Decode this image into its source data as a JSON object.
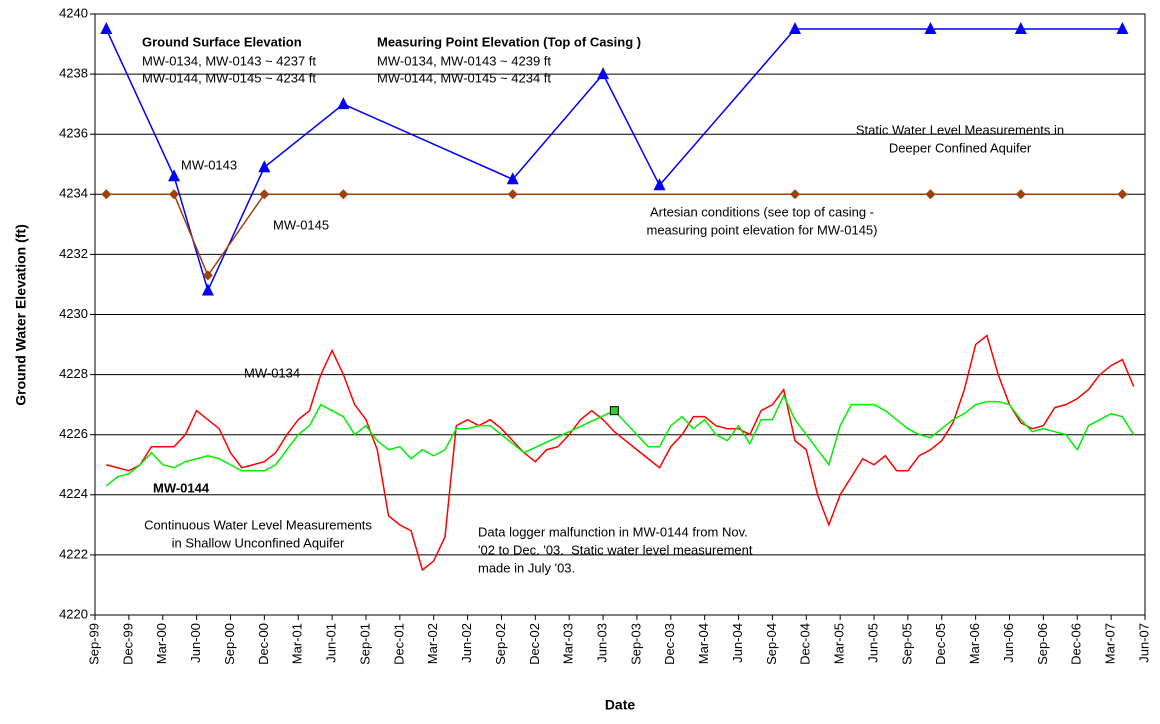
{
  "chart_data": {
    "type": "line",
    "y_label": "Ground Water Elevation (ft)",
    "x_label": "Date",
    "ylim": [
      4220,
      4240
    ],
    "yticks": [
      4220,
      4222,
      4224,
      4226,
      4228,
      4230,
      4232,
      4234,
      4236,
      4238,
      4240
    ],
    "xlim": [
      "1999-09",
      "2007-06"
    ],
    "xticks": [
      {
        "value": "1999-09",
        "label": "Sep-99"
      },
      {
        "value": "1999-12",
        "label": "Dec-99"
      },
      {
        "value": "2000-03",
        "label": "Mar-00"
      },
      {
        "value": "2000-06",
        "label": "Jun-00"
      },
      {
        "value": "2000-09",
        "label": "Sep-00"
      },
      {
        "value": "2000-12",
        "label": "Dec-00"
      },
      {
        "value": "2001-03",
        "label": "Mar-01"
      },
      {
        "value": "2001-06",
        "label": "Jun-01"
      },
      {
        "value": "2001-09",
        "label": "Sep-01"
      },
      {
        "value": "2001-12",
        "label": "Dec-01"
      },
      {
        "value": "2002-03",
        "label": "Mar-02"
      },
      {
        "value": "2002-06",
        "label": "Jun-02"
      },
      {
        "value": "2002-09",
        "label": "Sep-02"
      },
      {
        "value": "2002-12",
        "label": "Dec-02"
      },
      {
        "value": "2003-03",
        "label": "Mar-03"
      },
      {
        "value": "2003-06",
        "label": "Jun-03"
      },
      {
        "value": "2003-09",
        "label": "Sep-03"
      },
      {
        "value": "2003-12",
        "label": "Dec-03"
      },
      {
        "value": "2004-03",
        "label": "Mar-04"
      },
      {
        "value": "2004-06",
        "label": "Jun-04"
      },
      {
        "value": "2004-09",
        "label": "Sep-04"
      },
      {
        "value": "2004-12",
        "label": "Dec-04"
      },
      {
        "value": "2005-03",
        "label": "Mar-05"
      },
      {
        "value": "2005-06",
        "label": "Jun-05"
      },
      {
        "value": "2005-09",
        "label": "Sep-05"
      },
      {
        "value": "2005-12",
        "label": "Dec-05"
      },
      {
        "value": "2006-03",
        "label": "Mar-06"
      },
      {
        "value": "2006-06",
        "label": "Jun-06"
      },
      {
        "value": "2006-09",
        "label": "Sep-06"
      },
      {
        "value": "2006-12",
        "label": "Dec-06"
      },
      {
        "value": "2007-03",
        "label": "Mar-07"
      },
      {
        "value": "2007-06",
        "label": "Jun-07"
      }
    ],
    "grid": true,
    "series": [
      {
        "name": "MW-0143",
        "color": "#0000ff",
        "marker": "triangle",
        "x": [
          "1999-10",
          "2000-04",
          "2000-07",
          "2000-12",
          "2001-07",
          "2002-10",
          "2003-06",
          "2003-11",
          "2004-11",
          "2005-11",
          "2006-07",
          "2007-04"
        ],
        "values": [
          4239.5,
          4234.6,
          4230.8,
          4234.9,
          4237.0,
          4234.5,
          4238.0,
          4234.3,
          4239.5,
          4239.5,
          4239.5,
          4239.5
        ]
      },
      {
        "name": "MW-0145",
        "color": "#a0400c",
        "marker": "diamond",
        "x": [
          "1999-10",
          "2000-04",
          "2000-07",
          "2000-12",
          "2001-07",
          "2002-10",
          "2004-11",
          "2005-11",
          "2006-07",
          "2007-04"
        ],
        "values": [
          4234,
          4234,
          4231.3,
          4234,
          4234,
          4234,
          4234,
          4234,
          4234,
          4234
        ]
      },
      {
        "name": "MW-0134",
        "color": "#ff0000",
        "marker": "none",
        "x": [
          "1999-10",
          "1999-11",
          "1999-12",
          "2000-01",
          "2000-02",
          "2000-03",
          "2000-04",
          "2000-05",
          "2000-06",
          "2000-07",
          "2000-08",
          "2000-09",
          "2000-10",
          "2000-11",
          "2000-12",
          "2001-01",
          "2001-02",
          "2001-03",
          "2001-04",
          "2001-05",
          "2001-06",
          "2001-07",
          "2001-08",
          "2001-09",
          "2001-10",
          "2001-11",
          "2001-12",
          "2002-01",
          "2002-02",
          "2002-03",
          "2002-04",
          "2002-05",
          "2002-06",
          "2002-07",
          "2002-08",
          "2002-09",
          "2002-10",
          "2002-11",
          "2002-12",
          "2003-01",
          "2003-02",
          "2003-03",
          "2003-04",
          "2003-05",
          "2003-06",
          "2003-07",
          "2003-08",
          "2003-09",
          "2003-10",
          "2003-11",
          "2003-12",
          "2004-01",
          "2004-02",
          "2004-03",
          "2004-04",
          "2004-05",
          "2004-06",
          "2004-07",
          "2004-08",
          "2004-09",
          "2004-10",
          "2004-11",
          "2004-12",
          "2005-01",
          "2005-02",
          "2005-03",
          "2005-04",
          "2005-05",
          "2005-06",
          "2005-07",
          "2005-08",
          "2005-09",
          "2005-10",
          "2005-11",
          "2005-12",
          "2006-01",
          "2006-02",
          "2006-03",
          "2006-04",
          "2006-05",
          "2006-06",
          "2006-07",
          "2006-08",
          "2006-09",
          "2006-10",
          "2006-11",
          "2006-12",
          "2007-01",
          "2007-02",
          "2007-03",
          "2007-04",
          "2007-05"
        ],
        "values": [
          4225.0,
          4224.9,
          4224.8,
          4225.0,
          4225.6,
          4225.6,
          4225.6,
          4226.0,
          4226.8,
          4226.5,
          4226.2,
          4225.4,
          4224.9,
          4225.0,
          4225.1,
          4225.4,
          4226.0,
          4226.5,
          4226.8,
          4228.0,
          4228.8,
          4228.0,
          4227.0,
          4226.5,
          4225.5,
          4223.3,
          4223.0,
          4222.8,
          4221.5,
          4221.8,
          4222.6,
          4226.3,
          4226.5,
          4226.3,
          4226.5,
          4226.2,
          4225.8,
          4225.4,
          4225.1,
          4225.5,
          4225.6,
          4226.0,
          4226.5,
          4226.8,
          4226.5,
          4226.1,
          4225.8,
          4225.5,
          4225.2,
          4224.9,
          4225.6,
          4226.0,
          4226.6,
          4226.6,
          4226.3,
          4226.2,
          4226.2,
          4226.0,
          4226.8,
          4227.0,
          4227.5,
          4225.8,
          4225.5,
          4224.0,
          4223.0,
          4224.0,
          4224.6,
          4225.2,
          4225.0,
          4225.3,
          4224.8,
          4224.8,
          4225.3,
          4225.5,
          4225.8,
          4226.4,
          4227.5,
          4229.0,
          4229.3,
          4228.0,
          4227.0,
          4226.4,
          4226.2,
          4226.3,
          4226.9,
          4227.0,
          4227.2,
          4227.5,
          4228.0,
          4228.3,
          4228.5,
          4227.6
        ]
      },
      {
        "name": "MW-0144",
        "color": "#00ee00",
        "marker": "none",
        "x": [
          "1999-10",
          "1999-11",
          "1999-12",
          "2000-01",
          "2000-02",
          "2000-03",
          "2000-04",
          "2000-05",
          "2000-06",
          "2000-07",
          "2000-08",
          "2000-09",
          "2000-10",
          "2000-11",
          "2000-12",
          "2001-01",
          "2001-02",
          "2001-03",
          "2001-04",
          "2001-05",
          "2001-06",
          "2001-07",
          "2001-08",
          "2001-09",
          "2001-10",
          "2001-11",
          "2001-12",
          "2002-01",
          "2002-02",
          "2002-03",
          "2002-04",
          "2002-05",
          "2002-06",
          "2002-07",
          "2002-08",
          "2002-09",
          "2002-10",
          "2002-11",
          "2003-07",
          "2003-10",
          "2003-11",
          "2003-12",
          "2004-01",
          "2004-02",
          "2004-03",
          "2004-04",
          "2004-05",
          "2004-06",
          "2004-07",
          "2004-08",
          "2004-09",
          "2004-10",
          "2004-11",
          "2004-12",
          "2005-01",
          "2005-02",
          "2005-03",
          "2005-04",
          "2005-05",
          "2005-06",
          "2005-07",
          "2005-08",
          "2005-09",
          "2005-10",
          "2005-11",
          "2005-12",
          "2006-01",
          "2006-02",
          "2006-03",
          "2006-04",
          "2006-05",
          "2006-06",
          "2006-07",
          "2006-08",
          "2006-09",
          "2006-10",
          "2006-11",
          "2006-12",
          "2007-01",
          "2007-02",
          "2007-03",
          "2007-04",
          "2007-05"
        ],
        "values": [
          4224.3,
          4224.6,
          4224.7,
          4225.0,
          4225.4,
          4225.0,
          4224.9,
          4225.1,
          4225.2,
          4225.3,
          4225.2,
          4225.0,
          4224.8,
          4224.8,
          4224.8,
          4225.0,
          4225.5,
          4226.0,
          4226.3,
          4227.0,
          4226.8,
          4226.6,
          4226.0,
          4226.3,
          4225.8,
          4225.5,
          4225.6,
          4225.2,
          4225.5,
          4225.3,
          4225.5,
          4226.2,
          4226.2,
          4226.3,
          4226.3,
          4226.0,
          4225.7,
          4225.4,
          4226.8,
          4225.6,
          4225.6,
          4226.3,
          4226.6,
          4226.2,
          4226.5,
          4226.0,
          4225.8,
          4226.3,
          4225.7,
          4226.5,
          4226.5,
          4227.3,
          4226.5,
          4226.0,
          4225.5,
          4225.0,
          4226.3,
          4227.0,
          4227.0,
          4227.0,
          4226.8,
          4226.5,
          4226.2,
          4226.0,
          4225.9,
          4226.2,
          4226.5,
          4226.7,
          4227.0,
          4227.1,
          4227.1,
          4227.0,
          4226.5,
          4226.1,
          4226.2,
          4226.1,
          4226.0,
          4225.5,
          4226.3,
          4226.5,
          4226.7,
          4226.6,
          4226.0
        ],
        "static_point": {
          "x": "2003-07",
          "value": 4226.8,
          "color": "#33cc33"
        }
      }
    ],
    "annotations": [
      {
        "title": "Ground Surface Elevation",
        "lines": [
          "MW-0134, MW-0143 ~ 4237 ft",
          "MW-0144, MW-0145 ~ 4234 ft"
        ]
      },
      {
        "title": "Measuring Point Elevation (Top of Casing )",
        "lines": [
          "MW-0134, MW-0143 ~ 4239 ft",
          "MW-0144, MW-0145 ~ 4234 ft"
        ]
      },
      {
        "lines": [
          "Static Water Level Measurements in",
          "Deeper Confined Aquifer"
        ]
      },
      {
        "lines": [
          "Artesian conditions (see top of casing -",
          "measuring point elevation for MW-0145)"
        ],
        "color": "#a0400c"
      },
      {
        "lines": [
          "Continuous Water Level Measurements",
          "in Shallow Unconfined Aquifer"
        ]
      },
      {
        "lines": [
          "Data logger malfunction in MW-0144 from Nov.",
          "'02 to Dec. '03.  Static water level measurement",
          "made in July '03."
        ]
      }
    ]
  }
}
